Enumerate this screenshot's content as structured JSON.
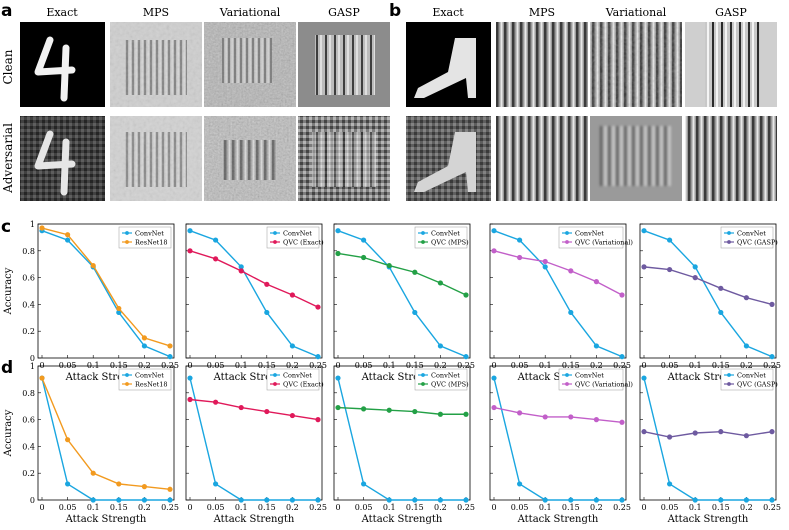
{
  "panel_labels": {
    "a": "a",
    "b": "b",
    "c": "c",
    "d": "d"
  },
  "image_grid": {
    "columns": [
      "Exact",
      "MPS",
      "Variational",
      "GASP"
    ],
    "rows": [
      "Clean",
      "Adversarial"
    ]
  },
  "chart_data": [
    {
      "type": "line",
      "panel": "c",
      "ylabel": "Accuracy",
      "xlabel": "Attack Strength",
      "x": [
        0,
        0.05,
        0.1,
        0.15,
        0.2,
        0.25
      ],
      "xticks": [
        "0",
        "0.05",
        "0.1",
        "0.15",
        "0.2",
        "0.25"
      ],
      "ylim": [
        0,
        1
      ],
      "yticks": [
        "0",
        "0.2",
        "0.4",
        "0.6",
        "0.8",
        "1"
      ],
      "legend": "top-right",
      "series": [
        {
          "name": "ConvNet",
          "color": "#1aa6e0",
          "values": [
            0.95,
            0.88,
            0.68,
            0.34,
            0.09,
            0.01
          ]
        },
        {
          "name": "ResNet18",
          "color": "#f29a1f",
          "values": [
            0.97,
            0.92,
            0.69,
            0.37,
            0.15,
            0.09
          ]
        }
      ]
    },
    {
      "type": "line",
      "panel": "c",
      "xlabel": "Attack Strength",
      "x": [
        0,
        0.05,
        0.1,
        0.15,
        0.2,
        0.25
      ],
      "xticks": [
        "0",
        "0.05",
        "0.1",
        "0.15",
        "0.2",
        "0.25"
      ],
      "ylim": [
        0,
        1
      ],
      "legend": "top-right",
      "series": [
        {
          "name": "ConvNet",
          "color": "#1aa6e0",
          "values": [
            0.95,
            0.88,
            0.68,
            0.34,
            0.09,
            0.01
          ]
        },
        {
          "name": "QVC (Exact)",
          "color": "#e0195a",
          "values": [
            0.8,
            0.74,
            0.65,
            0.55,
            0.47,
            0.38
          ]
        }
      ]
    },
    {
      "type": "line",
      "panel": "c",
      "xlabel": "Attack Strength",
      "x": [
        0,
        0.05,
        0.1,
        0.15,
        0.2,
        0.25
      ],
      "xticks": [
        "0",
        "0.05",
        "0.1",
        "0.15",
        "0.2",
        "0.25"
      ],
      "ylim": [
        0,
        1
      ],
      "legend": "top-right",
      "series": [
        {
          "name": "ConvNet",
          "color": "#1aa6e0",
          "values": [
            0.95,
            0.88,
            0.68,
            0.34,
            0.09,
            0.01
          ]
        },
        {
          "name": "QVC (MPS)",
          "color": "#23a046",
          "values": [
            0.78,
            0.75,
            0.69,
            0.64,
            0.56,
            0.47
          ]
        }
      ]
    },
    {
      "type": "line",
      "panel": "c",
      "xlabel": "Attack Strength",
      "x": [
        0,
        0.05,
        0.1,
        0.15,
        0.2,
        0.25
      ],
      "xticks": [
        "0",
        "0.05",
        "0.1",
        "0.15",
        "0.2",
        "0.25"
      ],
      "ylim": [
        0,
        1
      ],
      "legend": "top-right",
      "series": [
        {
          "name": "ConvNet",
          "color": "#1aa6e0",
          "values": [
            0.95,
            0.88,
            0.68,
            0.34,
            0.09,
            0.01
          ]
        },
        {
          "name": "QVC (Variational)",
          "color": "#c25fc9",
          "values": [
            0.8,
            0.75,
            0.72,
            0.65,
            0.57,
            0.47
          ]
        }
      ]
    },
    {
      "type": "line",
      "panel": "c",
      "xlabel": "Attack Strength",
      "x": [
        0,
        0.05,
        0.1,
        0.15,
        0.2,
        0.25
      ],
      "xticks": [
        "0",
        "0.05",
        "0.1",
        "0.15",
        "0.2",
        "0.25"
      ],
      "ylim": [
        0,
        1
      ],
      "legend": "top-right",
      "series": [
        {
          "name": "ConvNet",
          "color": "#1aa6e0",
          "values": [
            0.95,
            0.88,
            0.68,
            0.34,
            0.09,
            0.01
          ]
        },
        {
          "name": "QVC (GASP)",
          "color": "#6e5aa0",
          "values": [
            0.68,
            0.66,
            0.6,
            0.52,
            0.45,
            0.4
          ]
        }
      ]
    },
    {
      "type": "line",
      "panel": "d",
      "ylabel": "Accuracy",
      "xlabel": "Attack Strength",
      "x": [
        0,
        0.05,
        0.1,
        0.15,
        0.2,
        0.25
      ],
      "xticks": [
        "0",
        "0.05",
        "0.1",
        "0.15",
        "0.2",
        "0.25"
      ],
      "ylim": [
        0,
        1
      ],
      "yticks": [
        "0",
        "0.2",
        "0.4",
        "0.6",
        "0.8",
        "1"
      ],
      "legend": "top-right",
      "series": [
        {
          "name": "ConvNet",
          "color": "#1aa6e0",
          "values": [
            0.91,
            0.12,
            0.0,
            0.0,
            0.0,
            0.0
          ]
        },
        {
          "name": "ResNet18",
          "color": "#f29a1f",
          "values": [
            0.91,
            0.45,
            0.2,
            0.12,
            0.1,
            0.08
          ]
        }
      ]
    },
    {
      "type": "line",
      "panel": "d",
      "xlabel": "Attack Strength",
      "x": [
        0,
        0.05,
        0.1,
        0.15,
        0.2,
        0.25
      ],
      "xticks": [
        "0",
        "0.05",
        "0.1",
        "0.15",
        "0.2",
        "0.25"
      ],
      "ylim": [
        0,
        1
      ],
      "legend": "top-right",
      "series": [
        {
          "name": "ConvNet",
          "color": "#1aa6e0",
          "values": [
            0.91,
            0.12,
            0.0,
            0.0,
            0.0,
            0.0
          ]
        },
        {
          "name": "QVC (Exact)",
          "color": "#e0195a",
          "values": [
            0.75,
            0.73,
            0.69,
            0.66,
            0.63,
            0.6
          ]
        }
      ]
    },
    {
      "type": "line",
      "panel": "d",
      "xlabel": "Attack Strength",
      "x": [
        0,
        0.05,
        0.1,
        0.15,
        0.2,
        0.25
      ],
      "xticks": [
        "0",
        "0.05",
        "0.1",
        "0.15",
        "0.2",
        "0.25"
      ],
      "ylim": [
        0,
        1
      ],
      "legend": "top-right",
      "series": [
        {
          "name": "ConvNet",
          "color": "#1aa6e0",
          "values": [
            0.91,
            0.12,
            0.0,
            0.0,
            0.0,
            0.0
          ]
        },
        {
          "name": "QVC (MPS)",
          "color": "#23a046",
          "values": [
            0.69,
            0.68,
            0.67,
            0.66,
            0.64,
            0.64
          ]
        }
      ]
    },
    {
      "type": "line",
      "panel": "d",
      "xlabel": "Attack Strength",
      "x": [
        0,
        0.05,
        0.1,
        0.15,
        0.2,
        0.25
      ],
      "xticks": [
        "0",
        "0.05",
        "0.1",
        "0.15",
        "0.2",
        "0.25"
      ],
      "ylim": [
        0,
        1
      ],
      "legend": "top-right",
      "series": [
        {
          "name": "ConvNet",
          "color": "#1aa6e0",
          "values": [
            0.91,
            0.12,
            0.0,
            0.0,
            0.0,
            0.0
          ]
        },
        {
          "name": "QVC (Variational)",
          "color": "#c25fc9",
          "values": [
            0.69,
            0.65,
            0.62,
            0.62,
            0.6,
            0.58
          ]
        }
      ]
    },
    {
      "type": "line",
      "panel": "d",
      "xlabel": "Attack Strength",
      "x": [
        0,
        0.05,
        0.1,
        0.15,
        0.2,
        0.25
      ],
      "xticks": [
        "0",
        "0.05",
        "0.1",
        "0.15",
        "0.2",
        "0.25"
      ],
      "ylim": [
        0,
        1
      ],
      "legend": "top-right",
      "series": [
        {
          "name": "ConvNet",
          "color": "#1aa6e0",
          "values": [
            0.91,
            0.12,
            0.0,
            0.0,
            0.0,
            0.0
          ]
        },
        {
          "name": "QVC (GASP)",
          "color": "#6e5aa0",
          "values": [
            0.51,
            0.47,
            0.5,
            0.51,
            0.48,
            0.51
          ]
        }
      ]
    }
  ]
}
